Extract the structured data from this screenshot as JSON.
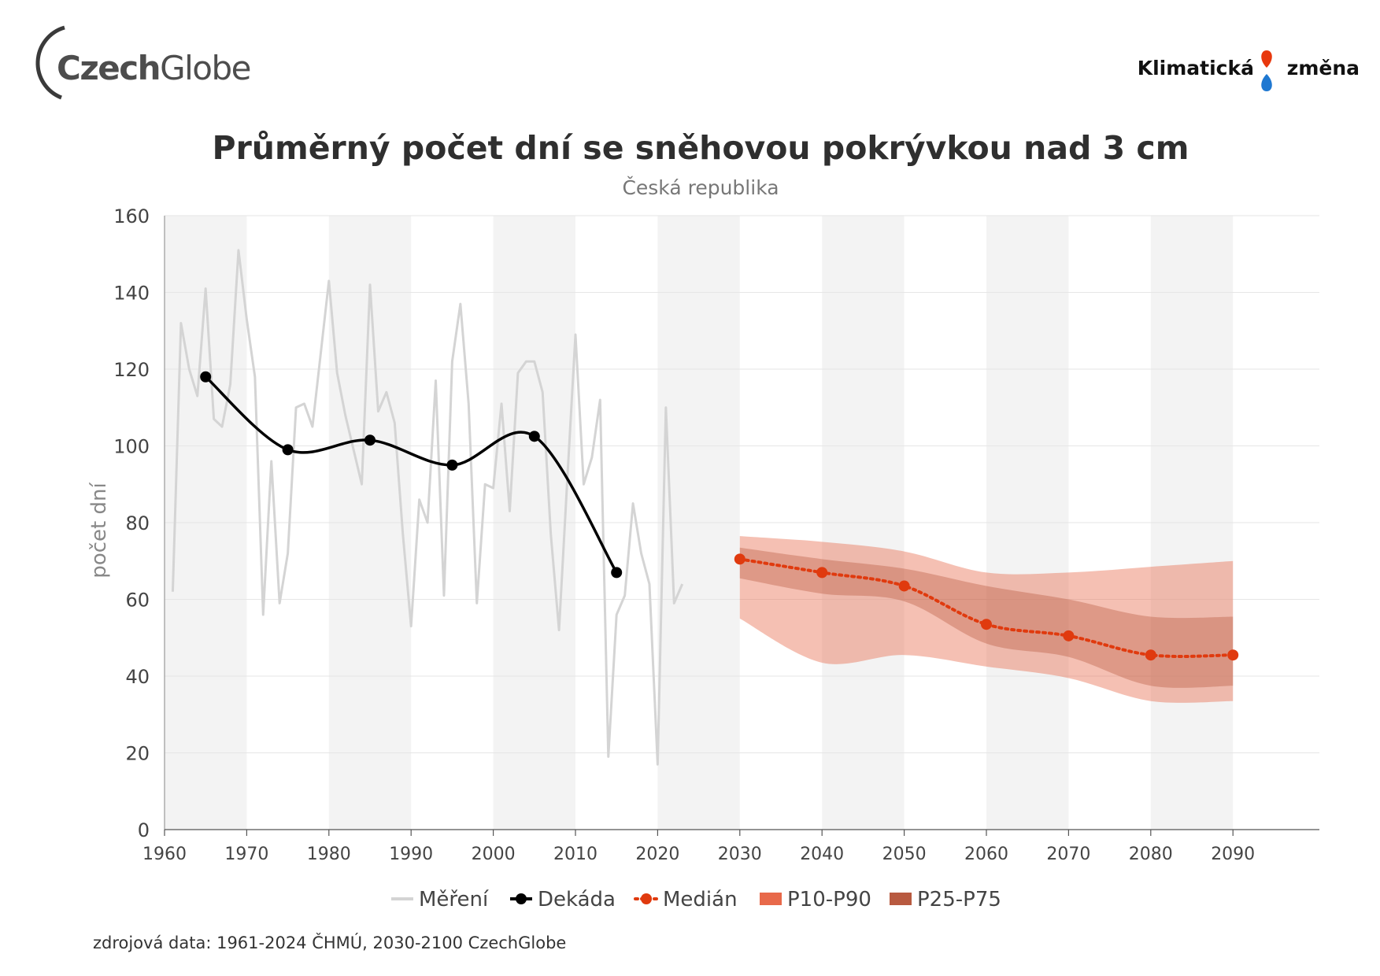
{
  "header": {
    "logo_left": {
      "bold": "Czech",
      "light": "Globe"
    },
    "logo_right": {
      "word1": "Klimatická",
      "word2": "změna",
      "colors": [
        "#e8380d",
        "#1f78d1"
      ]
    }
  },
  "footer": {
    "source": "zdrojová data: 1961-2024 ČHMÚ, 2030-2100 CzechGlobe"
  },
  "chart_data": {
    "type": "line",
    "title": "Průměrný počet dní se sněhovou pokrývkou nad 3 cm",
    "subtitle": "Česká republika",
    "ylabel": "počet dní",
    "xlabel": "",
    "xlim": [
      1960,
      2100
    ],
    "ylim": [
      0,
      160
    ],
    "x_ticks": [
      1960,
      1970,
      1980,
      1990,
      2000,
      2010,
      2020,
      2030,
      2040,
      2050,
      2060,
      2070,
      2080,
      2090
    ],
    "y_ticks": [
      0,
      20,
      40,
      60,
      80,
      100,
      120,
      140,
      160
    ],
    "grid": "horizontal",
    "alternating_decade_shading": true,
    "legend_position": "bottom",
    "legend": [
      "Měření",
      "Dekáda",
      "Medián",
      "P10-P90",
      "P25-P75"
    ],
    "colors": {
      "mereni": "#d4d4d4",
      "dekada": "#000000",
      "median": "#e03a0e",
      "p10_p90": "#e8694a",
      "p25_p75": "#b85a40"
    },
    "series": [
      {
        "name": "Měření",
        "x": [
          1961,
          1962,
          1963,
          1964,
          1965,
          1966,
          1967,
          1968,
          1969,
          1970,
          1971,
          1972,
          1973,
          1974,
          1975,
          1976,
          1977,
          1978,
          1979,
          1980,
          1981,
          1982,
          1983,
          1984,
          1985,
          1986,
          1987,
          1988,
          1989,
          1990,
          1991,
          1992,
          1993,
          1994,
          1995,
          1996,
          1997,
          1998,
          1999,
          2000,
          2001,
          2002,
          2003,
          2004,
          2005,
          2006,
          2007,
          2008,
          2009,
          2010,
          2011,
          2012,
          2013,
          2014,
          2015,
          2016,
          2017,
          2018,
          2019,
          2020,
          2021,
          2022,
          2023
        ],
        "y": [
          62,
          132,
          120,
          113,
          141,
          107,
          105,
          116,
          151,
          133,
          118,
          56,
          96,
          59,
          72,
          110,
          111,
          105,
          124,
          143,
          119,
          108,
          99,
          90,
          142,
          109,
          114,
          106,
          77,
          53,
          86,
          80,
          117,
          61,
          122,
          137,
          111,
          59,
          90,
          89,
          111,
          83,
          119,
          122,
          122,
          114,
          77,
          52,
          91,
          129,
          90,
          97,
          112,
          19,
          56,
          61,
          85,
          72,
          64,
          17,
          110,
          59,
          64
        ]
      },
      {
        "name": "Dekáda",
        "x": [
          1965,
          1975,
          1985,
          1995,
          2005,
          2015
        ],
        "y": [
          118,
          99,
          101.5,
          95,
          102.5,
          67
        ]
      },
      {
        "name": "Medián",
        "x": [
          2030,
          2040,
          2050,
          2060,
          2070,
          2080,
          2090
        ],
        "y": [
          70.5,
          67,
          63.5,
          53.5,
          50.5,
          45.5,
          45.5
        ]
      },
      {
        "name": "P10-P90",
        "x": [
          2030,
          2040,
          2050,
          2060,
          2070,
          2080,
          2090
        ],
        "low": [
          55,
          43.5,
          45.5,
          42.5,
          39.5,
          33.5,
          33.5
        ],
        "high": [
          76.5,
          75,
          72.5,
          67,
          67,
          68.5,
          70
        ]
      },
      {
        "name": "P25-P75",
        "x": [
          2030,
          2040,
          2050,
          2060,
          2070,
          2080,
          2090
        ],
        "low": [
          65.5,
          61.5,
          59.5,
          48.5,
          45,
          37.5,
          37.5
        ],
        "high": [
          73.5,
          70.5,
          68,
          63.5,
          60,
          55.5,
          55.5
        ]
      }
    ]
  }
}
